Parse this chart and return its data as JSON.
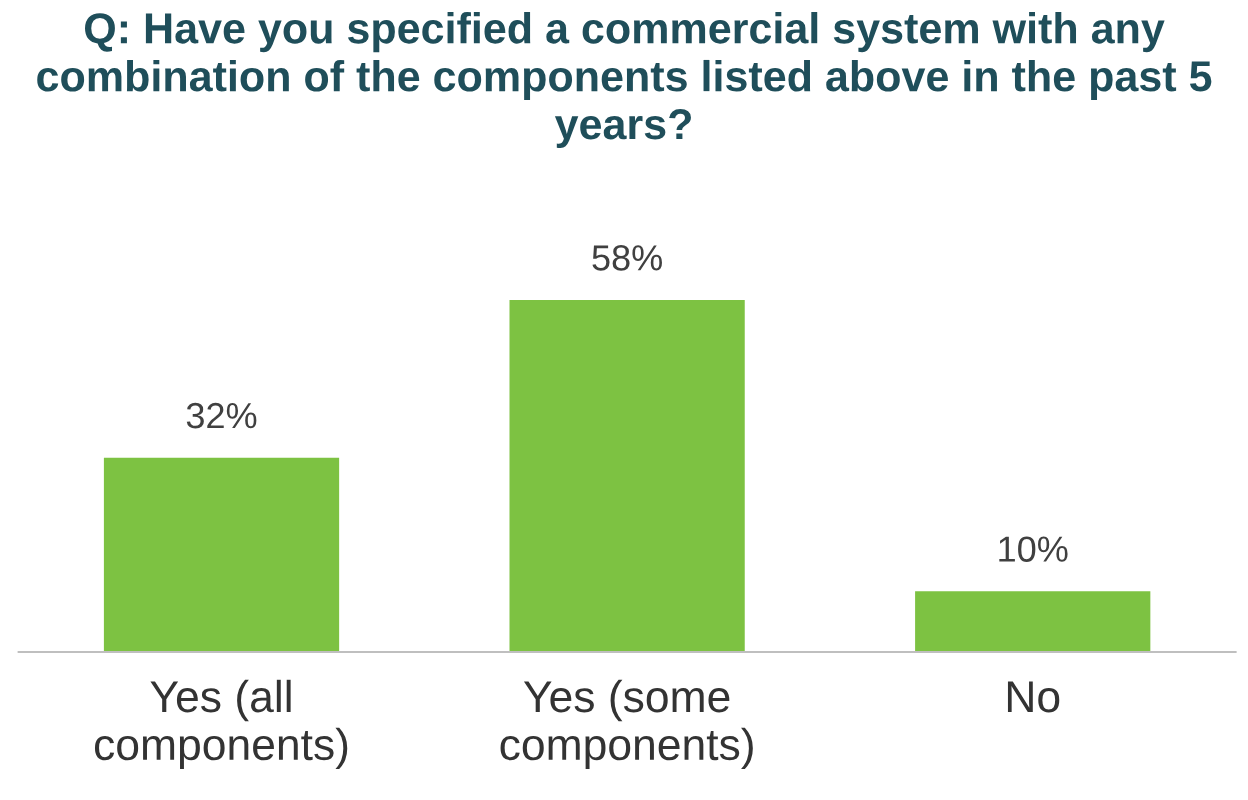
{
  "chart_data": {
    "type": "bar",
    "title": "Q: Have you specified a commercial system with any combination of the components listed above in the past 5 years?",
    "categories": [
      "Yes (all\ncomponents)",
      "Yes (some\ncomponents)",
      "No"
    ],
    "values": [
      32,
      58,
      10
    ],
    "color": "#7dc242",
    "value_labels": [
      "32%",
      "58%",
      "10%"
    ],
    "grid": false,
    "legend": false
  }
}
